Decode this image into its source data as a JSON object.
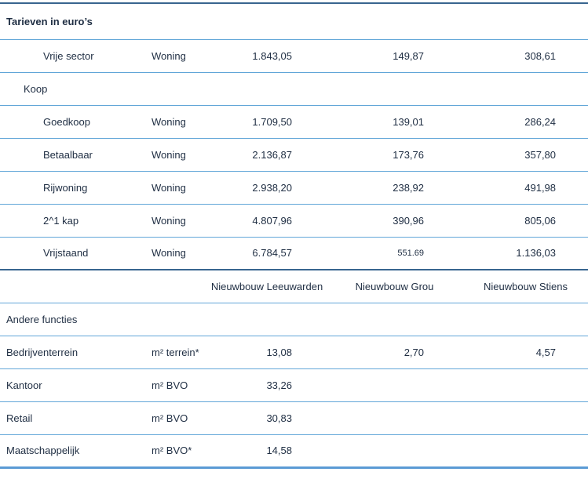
{
  "colors": {
    "text": "#1e2d42",
    "separator_light_blue": "#61a6d8",
    "separator_dark_blue": "#38658f",
    "bottom_border_blue": "#5b9bd5",
    "background": "#ffffff"
  },
  "table": {
    "column_headers": {
      "h1": "Nieuwbouw Leeuwarden",
      "h2": "Nieuwbouw Grou",
      "h3": "Nieuwbouw Stiens"
    },
    "rows": [
      {
        "type": "section",
        "label": "Tarieven in euro’s"
      },
      {
        "type": "item",
        "label": "Vrije sector",
        "unit": "Woning",
        "v1": "1.843,05",
        "v2": "149,87",
        "v3": "308,61"
      },
      {
        "type": "subsection",
        "label": "Koop"
      },
      {
        "type": "item",
        "label": "Goedkoop",
        "unit": "Woning",
        "v1": "1.709,50",
        "v2": "139,01",
        "v3": "286,24"
      },
      {
        "type": "item",
        "label": "Betaalbaar",
        "unit": "Woning",
        "v1": "2.136,87",
        "v2": "173,76",
        "v3": "357,80"
      },
      {
        "type": "item",
        "label": "Rijwoning",
        "unit": "Woning",
        "v1": "2.938,20",
        "v2": "238,92",
        "v3": "491,98"
      },
      {
        "type": "item",
        "label": "2^1 kap",
        "unit": "Woning",
        "v1": "4.807,96",
        "v2": "390,96",
        "v3": "805,06"
      },
      {
        "type": "item",
        "label": "Vrijstaand",
        "unit": "Woning",
        "v1": "6.784,57",
        "v2": "551.69",
        "v3": "1.136,03"
      },
      {
        "type": "colheader"
      },
      {
        "type": "section2",
        "label": "Andere functies"
      },
      {
        "type": "item",
        "label": "Bedrijventerrein",
        "unit": "m² terrein*",
        "v1": "13,08",
        "v2": "2,70",
        "v3": "4,57"
      },
      {
        "type": "item",
        "label": "Kantoor",
        "unit": "m² BVO",
        "v1": "33,26",
        "v2": "",
        "v3": ""
      },
      {
        "type": "item",
        "label": "Retail",
        "unit": "m² BVO",
        "v1": "30,83",
        "v2": "",
        "v3": ""
      },
      {
        "type": "item",
        "label": "Maatschappelijk",
        "unit": "m² BVO*",
        "v1": "14,58",
        "v2": "",
        "v3": ""
      }
    ]
  }
}
